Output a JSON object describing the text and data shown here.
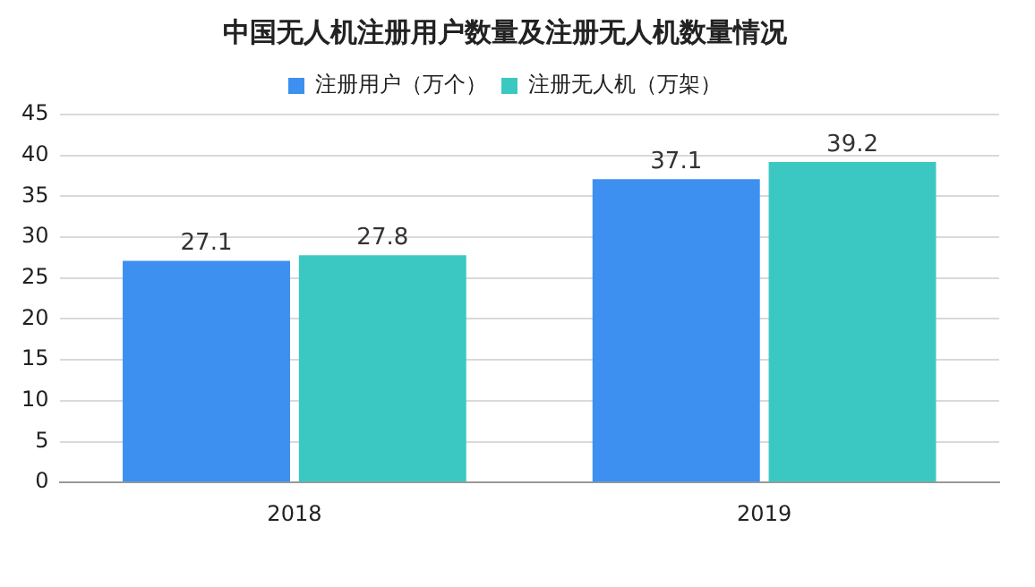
{
  "chart_data": {
    "type": "bar",
    "title": "中国无人机注册用户数量及注册无人机数量情况",
    "categories": [
      "2018",
      "2019"
    ],
    "series": [
      {
        "name": "注册用户（万个）",
        "color": "#3d8ff0",
        "values": [
          27.1,
          37.1
        ]
      },
      {
        "name": "注册无人机（万架）",
        "color": "#3cc8c2",
        "values": [
          27.8,
          39.2
        ]
      }
    ],
    "ylim": [
      0,
      45
    ],
    "yticks": [
      0,
      5,
      10,
      15,
      20,
      25,
      30,
      35,
      40,
      45
    ],
    "grid": "y",
    "legend": "top",
    "data_labels": true
  }
}
